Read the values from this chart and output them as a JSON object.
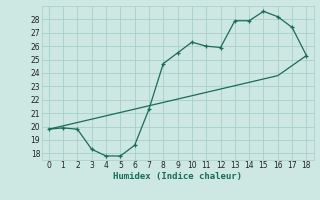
{
  "x": [
    0,
    1,
    2,
    3,
    4,
    5,
    6,
    7,
    8,
    9,
    10,
    11,
    12,
    13,
    14,
    15,
    16,
    17,
    18
  ],
  "y_curve": [
    19.8,
    19.9,
    19.8,
    18.3,
    17.8,
    17.8,
    18.6,
    21.3,
    24.7,
    25.5,
    26.3,
    26.0,
    25.9,
    27.9,
    27.9,
    28.6,
    28.2,
    27.4,
    25.3
  ],
  "y_linear": [
    19.8,
    20.05,
    20.3,
    20.55,
    20.8,
    21.05,
    21.3,
    21.55,
    21.8,
    22.05,
    22.3,
    22.55,
    22.8,
    23.05,
    23.3,
    23.55,
    23.8,
    24.55,
    25.3
  ],
  "line_color": "#1a6b5a",
  "bg_color": "#cde8e2",
  "grid_color": "#a8cec8",
  "xlabel": "Humidex (Indice chaleur)",
  "ylim": [
    17.5,
    29.0
  ],
  "xlim": [
    -0.5,
    18.5
  ],
  "yticks": [
    18,
    19,
    20,
    21,
    22,
    23,
    24,
    25,
    26,
    27,
    28
  ],
  "xticks": [
    0,
    1,
    2,
    3,
    4,
    5,
    6,
    7,
    8,
    9,
    10,
    11,
    12,
    13,
    14,
    15,
    16,
    17,
    18
  ]
}
